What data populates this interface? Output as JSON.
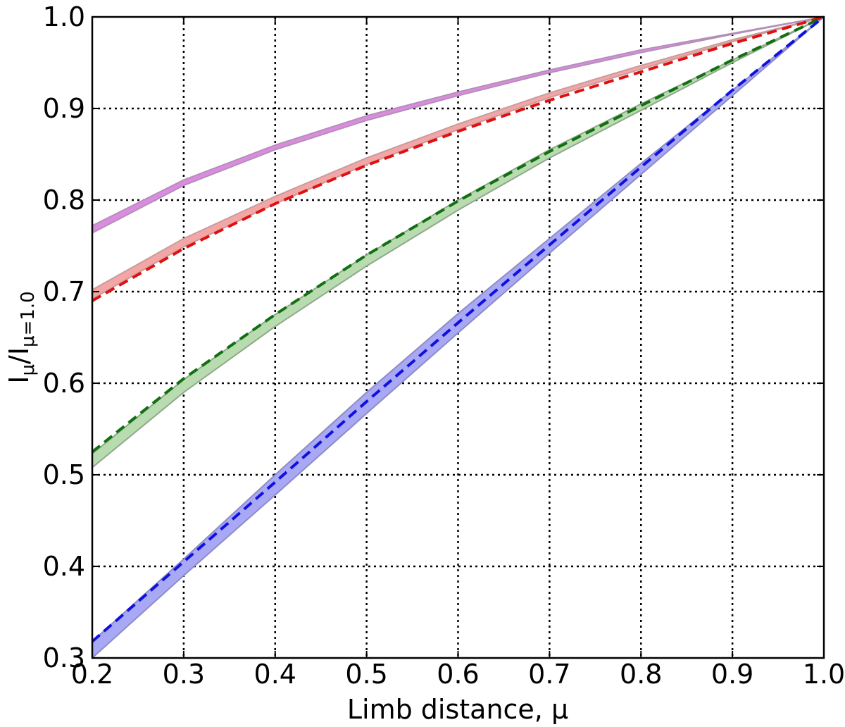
{
  "chart_data": {
    "type": "line",
    "xlabel": "Limb distance, μ",
    "ylabel_main": "I",
    "ylabel_sub1": "μ",
    "ylabel_mid": "/I",
    "ylabel_sub2": "μ=1.0",
    "xlim": [
      0.2,
      1.0
    ],
    "ylim": [
      0.3,
      1.0
    ],
    "xticks": [
      0.2,
      0.3,
      0.4,
      0.5,
      0.6,
      0.7,
      0.8,
      0.9,
      1.0
    ],
    "yticks": [
      0.3,
      0.4,
      0.5,
      0.6,
      0.7,
      0.8,
      0.9,
      1.0
    ],
    "xtick_labels": [
      "0.2",
      "0.3",
      "0.4",
      "0.5",
      "0.6",
      "0.7",
      "0.8",
      "0.9",
      "1.0"
    ],
    "ytick_labels": [
      "0.3",
      "0.4",
      "0.5",
      "0.6",
      "0.7",
      "0.8",
      "0.9",
      "1.0"
    ],
    "grid": true,
    "x": [
      0.2,
      0.3,
      0.4,
      0.5,
      0.6,
      0.7,
      0.8,
      0.9,
      1.0
    ],
    "bands": [
      {
        "color": "#dc8ce0",
        "edge": "#b38fb8",
        "upper": [
          0.772,
          0.822,
          0.86,
          0.892,
          0.918,
          0.942,
          0.964,
          0.982,
          1.0
        ],
        "lower": [
          0.764,
          0.816,
          0.855,
          0.887,
          0.914,
          0.939,
          0.961,
          0.981,
          1.0
        ]
      },
      {
        "color": "#f4a6a6",
        "edge": "#c99c9c",
        "upper": [
          0.702,
          0.758,
          0.804,
          0.846,
          0.883,
          0.917,
          0.947,
          0.975,
          1.0
        ],
        "lower": [
          0.692,
          0.749,
          0.796,
          0.839,
          0.877,
          0.912,
          0.943,
          0.973,
          1.0
        ]
      },
      {
        "color": "#b8dcb0",
        "edge": "#8fa88a",
        "upper": [
          0.523,
          0.604,
          0.675,
          0.74,
          0.8,
          0.855,
          0.905,
          0.953,
          1.0
        ],
        "lower": [
          0.508,
          0.59,
          0.662,
          0.728,
          0.789,
          0.846,
          0.898,
          0.95,
          1.0
        ]
      },
      {
        "color": "#a8a8f4",
        "edge": "#8c8cc8",
        "upper": [
          0.318,
          0.408,
          0.5,
          0.59,
          0.676,
          0.758,
          0.84,
          0.92,
          1.0
        ],
        "lower": [
          0.3,
          0.39,
          0.478,
          0.567,
          0.655,
          0.742,
          0.828,
          0.914,
          1.0
        ]
      }
    ],
    "dashed": [
      {
        "color": "#e01010",
        "values": [
          0.69,
          0.747,
          0.796,
          0.838,
          0.875,
          0.909,
          0.94,
          0.971,
          1.0
        ]
      },
      {
        "color": "#107010",
        "values": [
          0.525,
          0.605,
          0.675,
          0.74,
          0.799,
          0.853,
          0.903,
          0.953,
          1.0
        ]
      },
      {
        "color": "#1010e0",
        "values": [
          0.318,
          0.405,
          0.492,
          0.58,
          0.666,
          0.751,
          0.836,
          0.92,
          1.0
        ]
      }
    ]
  }
}
